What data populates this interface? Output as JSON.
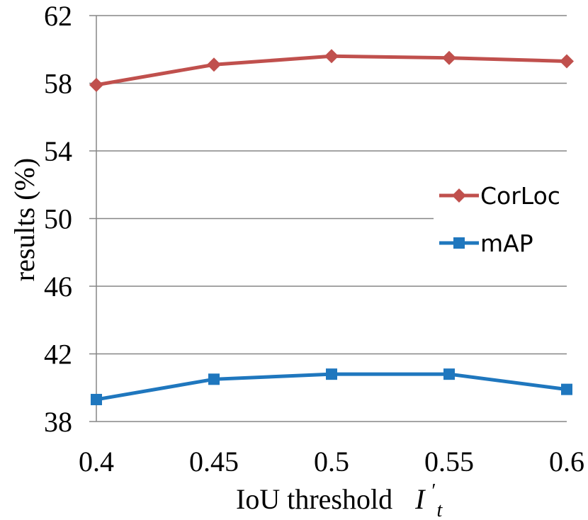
{
  "chart_data": {
    "type": "line",
    "title": "",
    "xlabel": "IoU threshold",
    "xlabel_symbol": {
      "base": "I",
      "prime": "′",
      "sub": "t"
    },
    "ylabel": "results (%)",
    "categories": [
      "0.4",
      "0.45",
      "0.5",
      "0.55",
      "0.6"
    ],
    "ylim": [
      38,
      62
    ],
    "yticks": [
      38,
      42,
      46,
      50,
      54,
      58,
      62
    ],
    "grid": true,
    "legend_position": "right",
    "series": [
      {
        "name": "CorLoc",
        "color": "#C0504D",
        "marker": "diamond",
        "values": [
          57.9,
          59.1,
          59.6,
          59.5,
          59.3
        ]
      },
      {
        "name": "mAP",
        "color": "#1F77BE",
        "marker": "square",
        "values": [
          39.3,
          40.5,
          40.8,
          40.8,
          39.9
        ]
      }
    ]
  }
}
